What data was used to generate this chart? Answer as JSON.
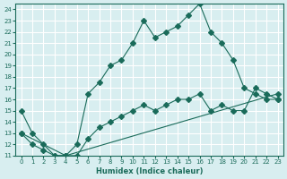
{
  "xlabel": "Humidex (Indice chaleur)",
  "bg_color": "#d8eef0",
  "grid_color": "#ffffff",
  "line_color": "#1a6b5a",
  "xlim": [
    -0.5,
    23.5
  ],
  "ylim": [
    11,
    24.5
  ],
  "xticks": [
    0,
    1,
    2,
    3,
    4,
    5,
    6,
    7,
    8,
    9,
    10,
    11,
    12,
    13,
    14,
    15,
    16,
    17,
    18,
    19,
    20,
    21,
    22,
    23
  ],
  "yticks": [
    11,
    12,
    13,
    14,
    15,
    16,
    17,
    18,
    19,
    20,
    21,
    22,
    23,
    24
  ],
  "line1_x": [
    0,
    1,
    2,
    3,
    4,
    5,
    6,
    7,
    8,
    9,
    10,
    11,
    12,
    13,
    14,
    15,
    16,
    17,
    18,
    19,
    20,
    21,
    22,
    23
  ],
  "line1_y": [
    15,
    13,
    12,
    11,
    11,
    12,
    16.5,
    17.5,
    19,
    19.5,
    21,
    23,
    21.5,
    22,
    22.5,
    23.5,
    24.5,
    22,
    21,
    19.5,
    17,
    16.5,
    16,
    16
  ],
  "line2_x": [
    0,
    1,
    2,
    3,
    4,
    5,
    6,
    7,
    8,
    9,
    10,
    11,
    12,
    13,
    14,
    15,
    16,
    17,
    18,
    19,
    20,
    21,
    22,
    23
  ],
  "line2_y": [
    13,
    12,
    11.5,
    11,
    11,
    11,
    12.5,
    13.5,
    14,
    14.5,
    15,
    15.5,
    15,
    15.5,
    16,
    16,
    16.5,
    15,
    15.5,
    15,
    15,
    17,
    16.5,
    16
  ],
  "line3_x": [
    0,
    4,
    23
  ],
  "line3_y": [
    13,
    11,
    16.5
  ],
  "marker_size": 3
}
